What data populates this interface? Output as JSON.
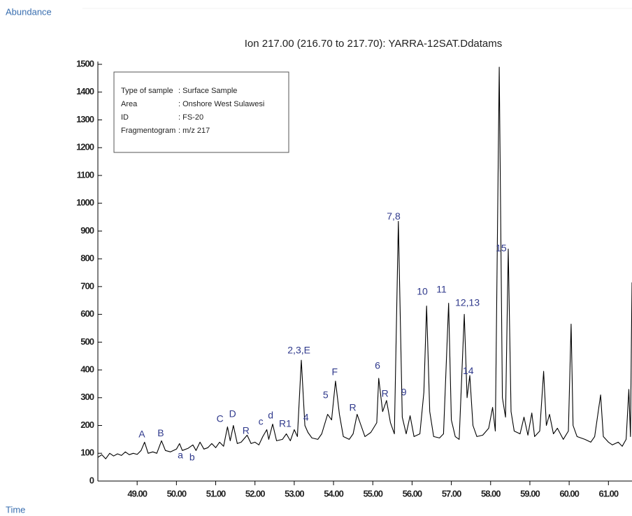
{
  "chart_data": {
    "type": "line",
    "title": "Ion 217.00 (216.70 to 217.70): YARRA-12SAT.Ddatams",
    "y_label": "Abundance",
    "x_label": "Time",
    "color": "#000000",
    "xlim": [
      48.0,
      61.6
    ],
    "ylim": [
      0,
      1500
    ],
    "xticks": [
      {
        "value": 49,
        "label": "49.00"
      },
      {
        "value": 50,
        "label": "50.00"
      },
      {
        "value": 51,
        "label": "51.00"
      },
      {
        "value": 52,
        "label": "52.00"
      },
      {
        "value": 53,
        "label": "53.00"
      },
      {
        "value": 54,
        "label": "54.00"
      },
      {
        "value": 55,
        "label": "55.00"
      },
      {
        "value": 56,
        "label": "56.00"
      },
      {
        "value": 57,
        "label": "57.00"
      },
      {
        "value": 58,
        "label": "58.00"
      },
      {
        "value": 59,
        "label": "59.00"
      },
      {
        "value": 60,
        "label": "60.00"
      },
      {
        "value": 61,
        "label": "61.00"
      }
    ],
    "yticks": [
      0,
      100,
      200,
      300,
      400,
      500,
      600,
      700,
      800,
      900,
      1000,
      1100,
      1200,
      1300,
      1400,
      1500
    ],
    "info_box": [
      [
        "Type of sample",
        ": Surface Sample"
      ],
      [
        "Area",
        ": Onshore West Sulawesi"
      ],
      [
        "ID",
        ": FS-20"
      ],
      [
        "Fragmentogram",
        ": m/z 217"
      ]
    ],
    "x": [
      48.0,
      48.1,
      48.2,
      48.3,
      48.4,
      48.5,
      48.6,
      48.7,
      48.8,
      48.9,
      49.0,
      49.1,
      49.19,
      49.28,
      49.4,
      49.5,
      49.62,
      49.72,
      49.85,
      50.0,
      50.08,
      50.15,
      50.3,
      50.42,
      50.5,
      50.6,
      50.7,
      50.8,
      50.9,
      51.0,
      51.1,
      51.2,
      51.3,
      51.37,
      51.45,
      51.55,
      51.65,
      51.8,
      51.9,
      52.0,
      52.1,
      52.2,
      52.3,
      52.35,
      52.45,
      52.55,
      52.7,
      52.8,
      52.9,
      53.0,
      53.08,
      53.18,
      53.27,
      53.35,
      53.45,
      53.6,
      53.7,
      53.85,
      53.95,
      54.05,
      54.15,
      54.25,
      54.4,
      54.5,
      54.6,
      54.7,
      54.8,
      54.95,
      55.1,
      55.15,
      55.25,
      55.35,
      55.45,
      55.55,
      55.65,
      55.75,
      55.85,
      55.95,
      56.05,
      56.2,
      56.3,
      56.37,
      56.45,
      56.55,
      56.7,
      56.8,
      56.93,
      57.0,
      57.1,
      57.2,
      57.33,
      57.4,
      57.47,
      57.55,
      57.65,
      57.8,
      57.95,
      58.05,
      58.12,
      58.22,
      58.3,
      58.38,
      58.45,
      58.52,
      58.6,
      58.75,
      58.85,
      58.95,
      59.05,
      59.12,
      59.25,
      59.35,
      59.42,
      59.5,
      59.6,
      59.7,
      59.85,
      59.98,
      60.05,
      60.1,
      60.2,
      60.4,
      60.55,
      60.65,
      60.8,
      60.87,
      61.0,
      61.1,
      61.25,
      61.35,
      61.45,
      61.52,
      61.56,
      61.6
    ],
    "values": [
      85,
      95,
      80,
      100,
      90,
      98,
      92,
      105,
      95,
      100,
      96,
      110,
      140,
      100,
      105,
      100,
      145,
      110,
      105,
      115,
      135,
      110,
      118,
      130,
      110,
      140,
      115,
      120,
      135,
      120,
      140,
      125,
      195,
      145,
      200,
      135,
      140,
      165,
      135,
      140,
      130,
      160,
      185,
      150,
      205,
      145,
      150,
      170,
      145,
      185,
      160,
      435,
      200,
      175,
      155,
      150,
      170,
      240,
      220,
      360,
      240,
      160,
      150,
      170,
      240,
      200,
      160,
      175,
      210,
      370,
      250,
      290,
      210,
      170,
      935,
      230,
      170,
      235,
      160,
      170,
      320,
      630,
      250,
      160,
      155,
      170,
      640,
      220,
      160,
      150,
      600,
      300,
      380,
      200,
      160,
      165,
      190,
      265,
      180,
      1490,
      300,
      230,
      835,
      250,
      180,
      170,
      230,
      165,
      245,
      160,
      180,
      395,
      200,
      240,
      170,
      190,
      150,
      180,
      565,
      200,
      160,
      150,
      140,
      160,
      310,
      160,
      140,
      130,
      140,
      125,
      150,
      330,
      160,
      715
    ],
    "annotations": [
      {
        "text": "A",
        "x": 49.12,
        "y": 166
      },
      {
        "text": "B",
        "x": 49.6,
        "y": 171
      },
      {
        "text": "a",
        "x": 50.1,
        "y": 91
      },
      {
        "text": "b",
        "x": 50.4,
        "y": 83
      },
      {
        "text": "C",
        "x": 51.11,
        "y": 222
      },
      {
        "text": "D",
        "x": 51.43,
        "y": 239
      },
      {
        "text": "R",
        "x": 51.77,
        "y": 179
      },
      {
        "text": "c",
        "x": 52.15,
        "y": 212
      },
      {
        "text": "d",
        "x": 52.4,
        "y": 234
      },
      {
        "text": "R1",
        "x": 52.77,
        "y": 204
      },
      {
        "text": "2,3,E",
        "x": 53.12,
        "y": 469
      },
      {
        "text": "4",
        "x": 53.3,
        "y": 227
      },
      {
        "text": "5",
        "x": 53.8,
        "y": 307
      },
      {
        "text": "F",
        "x": 54.03,
        "y": 390
      },
      {
        "text": "R",
        "x": 54.49,
        "y": 262
      },
      {
        "text": "6",
        "x": 55.12,
        "y": 413
      },
      {
        "text": "R",
        "x": 55.31,
        "y": 312
      },
      {
        "text": "7,8",
        "x": 55.53,
        "y": 950
      },
      {
        "text": "9",
        "x": 55.79,
        "y": 317
      },
      {
        "text": "10",
        "x": 56.26,
        "y": 680
      },
      {
        "text": "11",
        "x": 56.75,
        "y": 688
      },
      {
        "text": "12,13",
        "x": 57.41,
        "y": 640
      },
      {
        "text": "14",
        "x": 57.43,
        "y": 395
      },
      {
        "text": "15",
        "x": 58.27,
        "y": 836
      }
    ]
  }
}
